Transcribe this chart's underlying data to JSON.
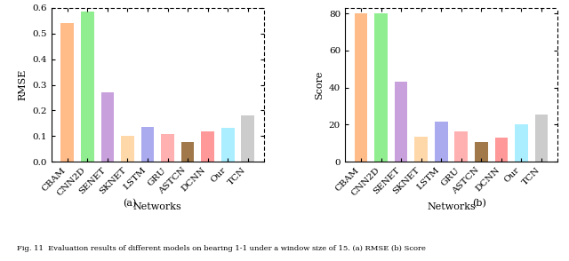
{
  "categories": [
    "CBAM",
    "CNN2D",
    "SENET",
    "SKNET",
    "LSTM",
    "GRU",
    "ASTCN",
    "DCNN",
    "Our",
    "TCN"
  ],
  "rmse_values": [
    0.54,
    0.585,
    0.272,
    0.101,
    0.135,
    0.108,
    0.078,
    0.118,
    0.132,
    0.182
  ],
  "score_values": [
    80.0,
    80.0,
    43.0,
    13.5,
    21.5,
    16.5,
    10.5,
    13.0,
    20.0,
    25.5
  ],
  "bar_colors": [
    "#FFBB88",
    "#90EE90",
    "#C8A0DC",
    "#FFD8AA",
    "#AAAAEE",
    "#FFB0B0",
    "#A0784A",
    "#FF9999",
    "#AAEEFF",
    "#CCCCCC"
  ],
  "rmse_ylabel": "RMSE",
  "score_ylabel": "Score",
  "xlabel": "Networks",
  "rmse_ylim": [
    0,
    0.6
  ],
  "score_ylim": [
    0,
    83
  ],
  "rmse_yticks": [
    0.0,
    0.1,
    0.2,
    0.3,
    0.4,
    0.5,
    0.6
  ],
  "score_yticks": [
    0,
    20,
    40,
    60,
    80
  ],
  "label_a": "(a)",
  "label_b": "(b)",
  "caption": "Fig. 11  Evaluation results of different models on bearing 1-1 under a window size of 15. (a) RMSE (b) Score",
  "bg_color": "#FFFFFF"
}
